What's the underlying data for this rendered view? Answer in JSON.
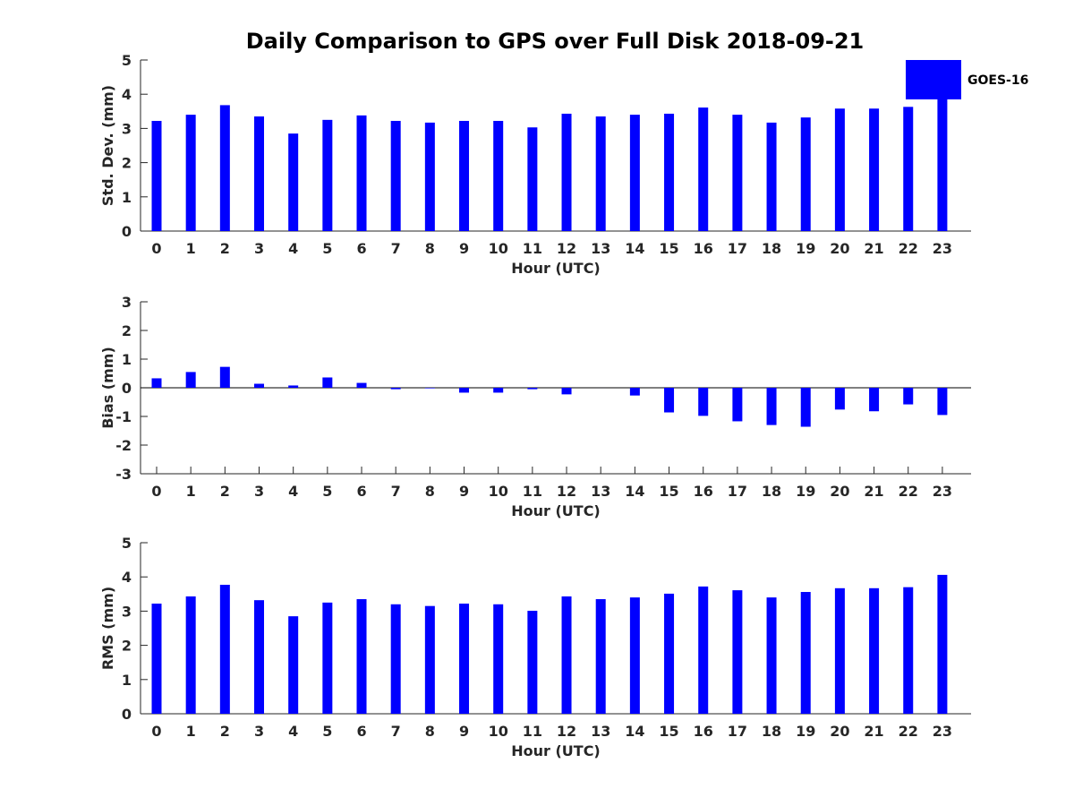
{
  "chart_data": {
    "title": "Daily Comparison to GPS over Full Disk 2018-09-21",
    "legend": {
      "label": "GOES-16",
      "placement": "top-right"
    },
    "bar_color": "#0000ff",
    "panels": [
      {
        "type": "bar",
        "ylabel": "Std. Dev. (mm)",
        "xlabel": "Hour (UTC)",
        "ylim": [
          0,
          5
        ],
        "yticks": [
          0,
          1,
          2,
          3,
          4,
          5
        ],
        "zero_line": false,
        "categories": [
          "0",
          "1",
          "2",
          "3",
          "4",
          "5",
          "6",
          "7",
          "8",
          "9",
          "10",
          "11",
          "12",
          "13",
          "14",
          "15",
          "16",
          "17",
          "18",
          "19",
          "20",
          "21",
          "22",
          "23"
        ],
        "values": [
          3.22,
          3.4,
          3.68,
          3.35,
          2.85,
          3.25,
          3.38,
          3.22,
          3.17,
          3.22,
          3.22,
          3.03,
          3.43,
          3.35,
          3.4,
          3.43,
          3.61,
          3.4,
          3.17,
          3.32,
          3.58,
          3.58,
          3.63,
          3.85
        ]
      },
      {
        "type": "bar",
        "ylabel": "Bias (mm)",
        "xlabel": "Hour (UTC)",
        "ylim": [
          -3,
          3
        ],
        "yticks": [
          -3,
          -2,
          -1,
          0,
          1,
          2,
          3
        ],
        "zero_line": true,
        "categories": [
          "0",
          "1",
          "2",
          "3",
          "4",
          "5",
          "6",
          "7",
          "8",
          "9",
          "10",
          "11",
          "12",
          "13",
          "14",
          "15",
          "16",
          "17",
          "18",
          "19",
          "20",
          "21",
          "22",
          "23"
        ],
        "values": [
          0.33,
          0.55,
          0.73,
          0.14,
          0.08,
          0.36,
          0.17,
          -0.05,
          -0.02,
          -0.17,
          -0.17,
          -0.05,
          -0.23,
          0.0,
          -0.27,
          -0.86,
          -0.98,
          -1.17,
          -1.3,
          -1.36,
          -0.76,
          -0.82,
          -0.58,
          -0.95
        ]
      },
      {
        "type": "bar",
        "ylabel": "RMS (mm)",
        "xlabel": "Hour (UTC)",
        "ylim": [
          0,
          5
        ],
        "yticks": [
          0,
          1,
          2,
          3,
          4,
          5
        ],
        "zero_line": false,
        "categories": [
          "0",
          "1",
          "2",
          "3",
          "4",
          "5",
          "6",
          "7",
          "8",
          "9",
          "10",
          "11",
          "12",
          "13",
          "14",
          "15",
          "16",
          "17",
          "18",
          "19",
          "20",
          "21",
          "22",
          "23"
        ],
        "values": [
          3.22,
          3.43,
          3.77,
          3.32,
          2.85,
          3.25,
          3.35,
          3.2,
          3.15,
          3.22,
          3.2,
          3.01,
          3.43,
          3.35,
          3.4,
          3.51,
          3.72,
          3.61,
          3.4,
          3.56,
          3.67,
          3.67,
          3.7,
          4.06
        ]
      }
    ]
  }
}
